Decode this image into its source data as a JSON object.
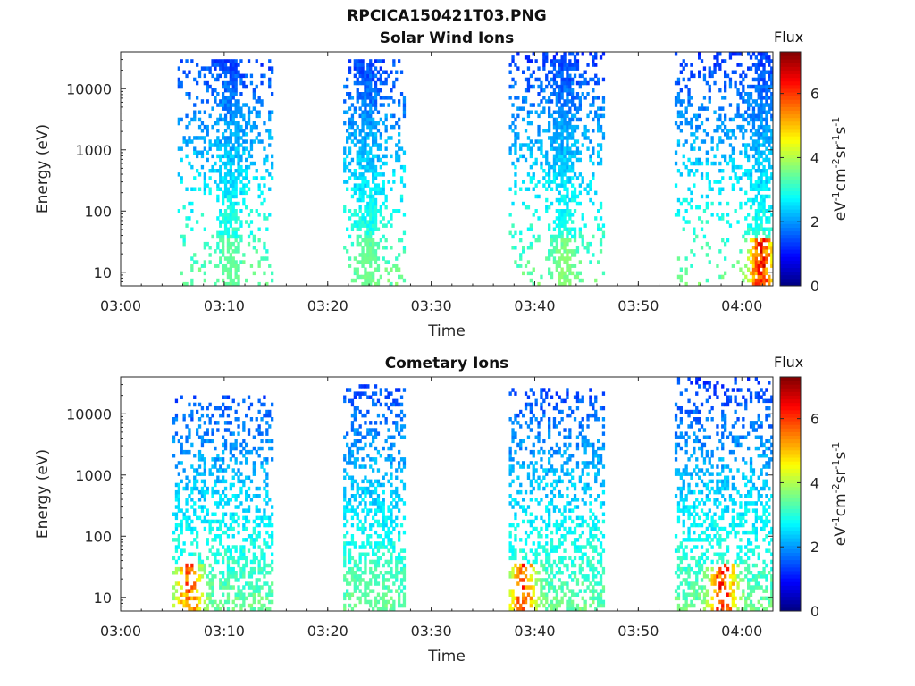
{
  "figure": {
    "filename": "RPCICA150421T03.PNG",
    "colorbar_title": "Flux",
    "colorbar_unit_base": "eV",
    "colorbar_unit_parts": [
      "-1",
      "cm",
      "-2",
      "sr",
      "-1",
      "s",
      "-1"
    ]
  },
  "chart_data": [
    {
      "type": "heatmap",
      "title": "Solar Wind Ions",
      "xlabel": "Time",
      "ylabel": "Energy (eV)",
      "x_ticks": [
        "03:00",
        "03:10",
        "03:20",
        "03:30",
        "03:40",
        "03:50",
        "04:00"
      ],
      "x_range": [
        "03:00",
        "04:03"
      ],
      "y_scale": "log",
      "y_ticks": [
        "10",
        "100",
        "1000",
        "10000"
      ],
      "y_range": [
        6,
        40000
      ],
      "colorbar_ticks": [
        "0",
        "2",
        "4",
        "6"
      ],
      "colorbar_range": [
        0,
        7.3
      ],
      "colormap": "jet",
      "intervals": [
        {
          "start": "03:05:30",
          "end": "03:14:45",
          "e_min": 6,
          "e_max": 30000,
          "core": "03:10:30",
          "peak_level": 3.5
        },
        {
          "start": "03:21:30",
          "end": "03:27:30",
          "e_min": 6,
          "e_max": 30000,
          "core": "03:23:45",
          "peak_level": 3.6
        },
        {
          "start": "03:37:30",
          "end": "03:46:45",
          "e_min": 6,
          "e_max": 40000,
          "core": "03:42:45",
          "peak_level": 3.8
        },
        {
          "start": "03:53:30",
          "end": "04:03:00",
          "e_min": 6,
          "e_max": 40000,
          "core": "04:01:45",
          "peak_level": 7.0
        }
      ]
    },
    {
      "type": "heatmap",
      "title": "Cometary Ions",
      "xlabel": "Time",
      "ylabel": "Energy (eV)",
      "x_ticks": [
        "03:00",
        "03:10",
        "03:20",
        "03:30",
        "03:40",
        "03:50",
        "04:00"
      ],
      "x_range": [
        "03:00",
        "04:03"
      ],
      "y_scale": "log",
      "y_ticks": [
        "10",
        "100",
        "1000",
        "10000"
      ],
      "y_range": [
        6,
        40000
      ],
      "colorbar_ticks": [
        "0",
        "2",
        "4",
        "6"
      ],
      "colorbar_range": [
        0,
        7.3
      ],
      "colormap": "jet",
      "intervals": [
        {
          "start": "03:05:00",
          "end": "03:14:45",
          "e_min": 6,
          "e_max": 20000,
          "core": "03:06:30",
          "peak_level": 6.3
        },
        {
          "start": "03:21:30",
          "end": "03:27:30",
          "e_min": 6,
          "e_max": 30000,
          "core": "03:24:00",
          "peak_level": 3.4
        },
        {
          "start": "03:37:30",
          "end": "03:46:45",
          "e_min": 6,
          "e_max": 25000,
          "core": "03:38:45",
          "peak_level": 6.5
        },
        {
          "start": "03:53:30",
          "end": "04:03:00",
          "e_min": 6,
          "e_max": 40000,
          "core": "03:58:00",
          "peak_level": 7.0
        }
      ]
    }
  ]
}
